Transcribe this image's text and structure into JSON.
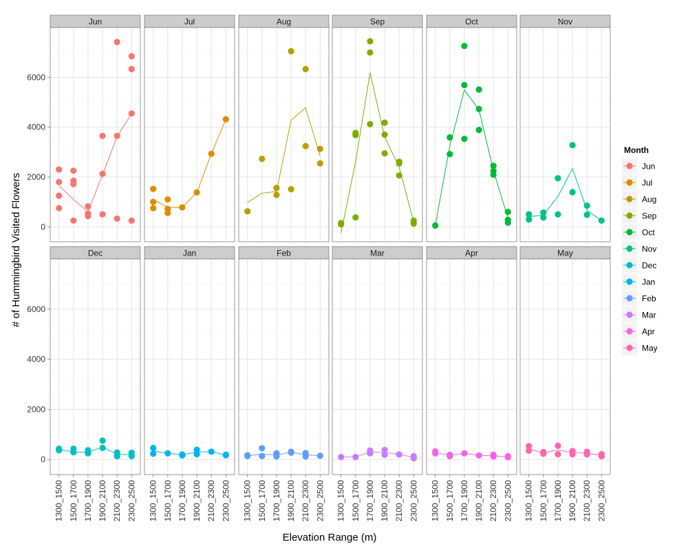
{
  "chart_data": {
    "type": "scatter",
    "xlabel": "Elevation Range (m)",
    "ylabel": "# of Hummingbird Visited Flowers",
    "ylim": [
      -600,
      8000
    ],
    "y_ticks": [
      0,
      2000,
      4000,
      6000
    ],
    "categories": [
      "1300_1500",
      "1500_1700",
      "1700_1900",
      "1900_2100",
      "2100_2300",
      "2300_2500"
    ],
    "grid": true,
    "legend": {
      "title": "Month",
      "position": "right"
    },
    "panels": [
      {
        "name": "Jun",
        "color": "#F8766D",
        "points": [
          [
            0,
            2300
          ],
          [
            0,
            1800
          ],
          [
            0,
            1250
          ],
          [
            0,
            750
          ],
          [
            1,
            2250
          ],
          [
            1,
            1850
          ],
          [
            1,
            1720
          ],
          [
            1,
            250
          ],
          [
            2,
            820
          ],
          [
            2,
            530
          ],
          [
            2,
            430
          ],
          [
            3,
            3650
          ],
          [
            3,
            2130
          ],
          [
            3,
            500
          ],
          [
            4,
            7420
          ],
          [
            4,
            3650
          ],
          [
            4,
            330
          ],
          [
            5,
            6850
          ],
          [
            5,
            6330
          ],
          [
            5,
            4550
          ],
          [
            5,
            250
          ]
        ],
        "line": [
          1650,
          1100,
          600,
          2100,
          3620,
          4550
        ]
      },
      {
        "name": "Jul",
        "color": "#DE8C00",
        "points": [
          [
            0,
            1520
          ],
          [
            0,
            1000
          ],
          [
            0,
            750
          ],
          [
            1,
            1100
          ],
          [
            1,
            720
          ],
          [
            1,
            560
          ],
          [
            2,
            780
          ],
          [
            3,
            1380
          ],
          [
            4,
            2930
          ],
          [
            5,
            4320
          ]
        ],
        "line": [
          1100,
          780,
          780,
          1380,
          2930,
          4320
        ]
      },
      {
        "name": "Aug",
        "color": "#B79F00",
        "points": [
          [
            0,
            620
          ],
          [
            1,
            2730
          ],
          [
            2,
            1560
          ],
          [
            2,
            1280
          ],
          [
            3,
            7050
          ],
          [
            3,
            1510
          ],
          [
            4,
            6330
          ],
          [
            4,
            3240
          ],
          [
            5,
            3130
          ],
          [
            5,
            2550
          ]
        ],
        "line": [
          980,
          1350,
          1420,
          4280,
          4780,
          2840
        ]
      },
      {
        "name": "Sep",
        "color": "#7CAE00",
        "points": [
          [
            0,
            150
          ],
          [
            0,
            100
          ],
          [
            1,
            3770
          ],
          [
            1,
            3680
          ],
          [
            1,
            380
          ],
          [
            2,
            7450
          ],
          [
            2,
            7000
          ],
          [
            2,
            4120
          ],
          [
            3,
            4180
          ],
          [
            3,
            3700
          ],
          [
            3,
            2950
          ],
          [
            4,
            2610
          ],
          [
            4,
            2540
          ],
          [
            4,
            2060
          ],
          [
            5,
            250
          ],
          [
            5,
            130
          ]
        ],
        "line": [
          -250,
          2610,
          6190,
          3610,
          2400,
          190
        ]
      },
      {
        "name": "Oct",
        "color": "#00BA38",
        "points": [
          [
            0,
            50
          ],
          [
            1,
            3590
          ],
          [
            1,
            2920
          ],
          [
            2,
            7260
          ],
          [
            2,
            5690
          ],
          [
            2,
            3530
          ],
          [
            3,
            5510
          ],
          [
            3,
            4730
          ],
          [
            3,
            3890
          ],
          [
            4,
            2450
          ],
          [
            4,
            2240
          ],
          [
            4,
            2090
          ],
          [
            5,
            600
          ],
          [
            5,
            280
          ],
          [
            5,
            170
          ]
        ],
        "line": [
          50,
          3250,
          5490,
          4710,
          2260,
          350
        ]
      },
      {
        "name": "Nov",
        "color": "#00C08B",
        "points": [
          [
            0,
            500
          ],
          [
            0,
            290
          ],
          [
            1,
            570
          ],
          [
            1,
            370
          ],
          [
            2,
            1950
          ],
          [
            2,
            500
          ],
          [
            3,
            3280
          ],
          [
            3,
            1390
          ],
          [
            4,
            850
          ],
          [
            4,
            480
          ],
          [
            5,
            250
          ]
        ],
        "line": [
          400,
          470,
          1220,
          2340,
          660,
          250
        ]
      },
      {
        "name": "Dec",
        "color": "#00BFC4",
        "points": [
          [
            0,
            430
          ],
          [
            0,
            370
          ],
          [
            1,
            430
          ],
          [
            1,
            290
          ],
          [
            2,
            370
          ],
          [
            2,
            250
          ],
          [
            3,
            750
          ],
          [
            3,
            460
          ],
          [
            4,
            280
          ],
          [
            4,
            130
          ],
          [
            5,
            270
          ],
          [
            5,
            140
          ]
        ],
        "line": [
          400,
          300,
          290,
          500,
          200,
          200
        ]
      },
      {
        "name": "Jan",
        "color": "#00B4F0",
        "points": [
          [
            0,
            460
          ],
          [
            0,
            230
          ],
          [
            1,
            250
          ],
          [
            2,
            200
          ],
          [
            2,
            160
          ],
          [
            3,
            390
          ],
          [
            3,
            210
          ],
          [
            4,
            310
          ],
          [
            5,
            190
          ],
          [
            5,
            170
          ]
        ],
        "line": [
          340,
          250,
          180,
          300,
          310,
          180
        ]
      },
      {
        "name": "Feb",
        "color": "#619CFF",
        "points": [
          [
            0,
            170
          ],
          [
            0,
            140
          ],
          [
            1,
            450
          ],
          [
            1,
            140
          ],
          [
            2,
            250
          ],
          [
            2,
            120
          ],
          [
            3,
            310
          ],
          [
            3,
            270
          ],
          [
            4,
            260
          ],
          [
            4,
            120
          ],
          [
            5,
            150
          ]
        ],
        "line": [
          150,
          220,
          180,
          290,
          190,
          150
        ]
      },
      {
        "name": "Mar",
        "color": "#C77CFF",
        "points": [
          [
            0,
            100
          ],
          [
            1,
            100
          ],
          [
            2,
            360
          ],
          [
            2,
            250
          ],
          [
            3,
            380
          ],
          [
            3,
            190
          ],
          [
            4,
            200
          ],
          [
            5,
            130
          ],
          [
            5,
            50
          ]
        ],
        "line": [
          100,
          100,
          300,
          280,
          200,
          90
        ]
      },
      {
        "name": "Apr",
        "color": "#F564E3",
        "points": [
          [
            0,
            330
          ],
          [
            0,
            240
          ],
          [
            1,
            190
          ],
          [
            1,
            130
          ],
          [
            2,
            250
          ],
          [
            3,
            160
          ],
          [
            4,
            190
          ],
          [
            4,
            120
          ],
          [
            5,
            130
          ],
          [
            5,
            90
          ]
        ],
        "line": [
          280,
          160,
          250,
          160,
          150,
          110
        ]
      },
      {
        "name": "May",
        "color": "#FF64B0",
        "points": [
          [
            0,
            530
          ],
          [
            0,
            350
          ],
          [
            1,
            300
          ],
          [
            1,
            230
          ],
          [
            2,
            550
          ],
          [
            2,
            210
          ],
          [
            3,
            340
          ],
          [
            3,
            210
          ],
          [
            4,
            310
          ],
          [
            4,
            200
          ],
          [
            5,
            210
          ],
          [
            5,
            130
          ]
        ],
        "line": [
          420,
          260,
          380,
          270,
          250,
          170
        ]
      }
    ]
  }
}
